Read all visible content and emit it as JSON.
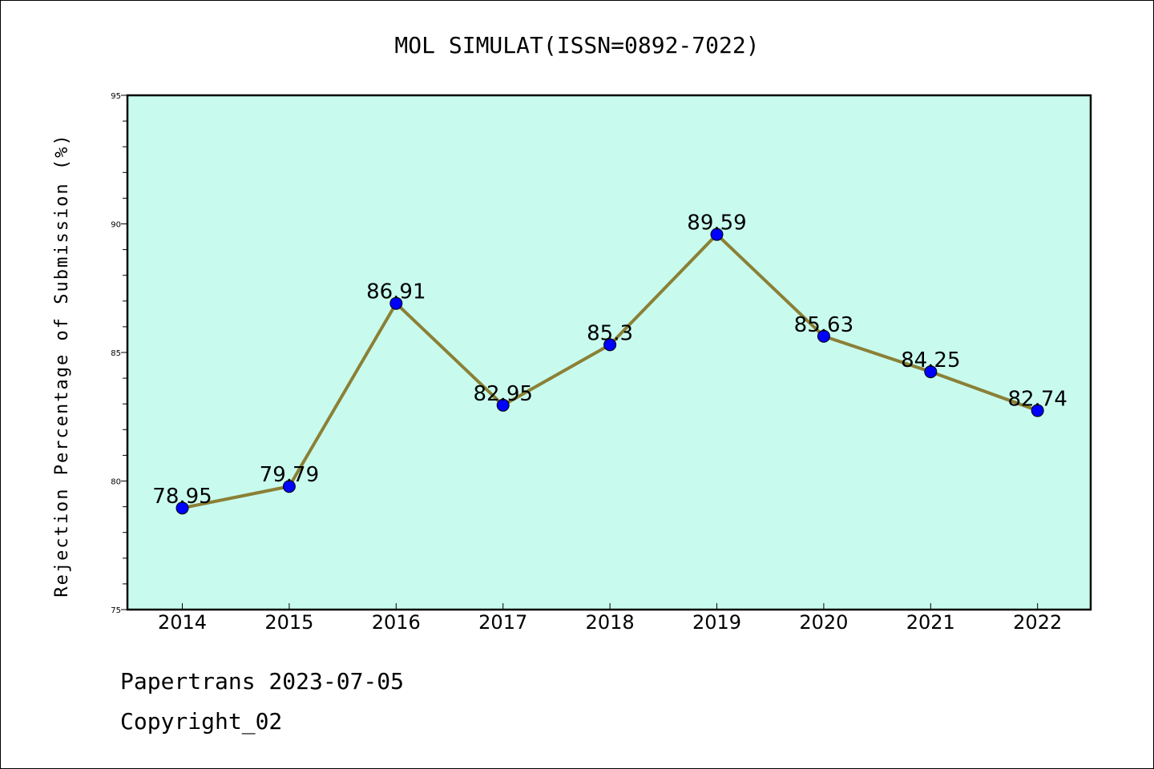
{
  "chart_data": {
    "type": "line",
    "title": "MOL SIMULAT(ISSN=0892-7022)",
    "ylabel": "Rejection Percentage of Submission (%)",
    "xlabel": "",
    "categories": [
      "2014",
      "2015",
      "2016",
      "2017",
      "2018",
      "2019",
      "2020",
      "2021",
      "2022"
    ],
    "values": [
      78.95,
      79.79,
      86.91,
      82.95,
      85.3,
      89.59,
      85.63,
      84.25,
      82.74
    ],
    "data_labels": [
      "78.95",
      "79.79",
      "86.91",
      "82.95",
      "85.3",
      "89.59",
      "85.63",
      "84.25",
      "82.74"
    ],
    "ylim": [
      75,
      95
    ],
    "yticks": [
      "75",
      "80",
      "85",
      "90",
      "95"
    ],
    "grid": false,
    "legend": "none",
    "colors": {
      "plot_background": "#c8fbee",
      "line": "#8b8036",
      "marker": "#0000ff"
    }
  },
  "footer": {
    "line1": "Papertrans 2023-07-05",
    "line2": "Copyright_02"
  }
}
